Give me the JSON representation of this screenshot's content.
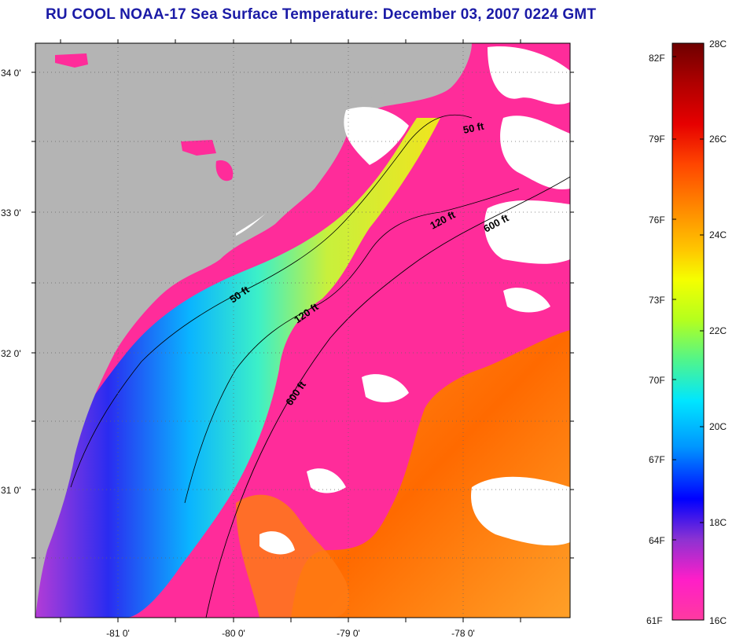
{
  "title": "RU COOL  NOAA-17  Sea Surface Temperature:  December 03, 2007 0224 GMT",
  "map": {
    "lat_labels": [
      "34 0'",
      "33 0'",
      "32 0'",
      "31 0'"
    ],
    "lon_labels": [
      "-81 0'",
      "-80 0'",
      "-79 0'",
      "-78 0'"
    ],
    "contour_labels": [
      "50 ft",
      "120 ft",
      "600 ft",
      "50 ft",
      "120 ft",
      "600 ft"
    ],
    "land_color": "#b4b4b4",
    "cloud_color": "#ffffff"
  },
  "colorbar": {
    "fahrenheit_labels": [
      "82F",
      "79F",
      "76F",
      "73F",
      "70F",
      "67F",
      "64F",
      "61F"
    ],
    "celsius_labels": [
      "28C",
      "26C",
      "24C",
      "22C",
      "20C",
      "18C",
      "16C"
    ],
    "colors": [
      "#7a0000",
      "#d40000",
      "#ff3a00",
      "#ff8c00",
      "#ffd200",
      "#f0ff00",
      "#9cff28",
      "#2cf0a0",
      "#00e6ff",
      "#0096ff",
      "#0010ff",
      "#8a2ccf",
      "#ff1fbe",
      "#ff2c9a"
    ]
  }
}
